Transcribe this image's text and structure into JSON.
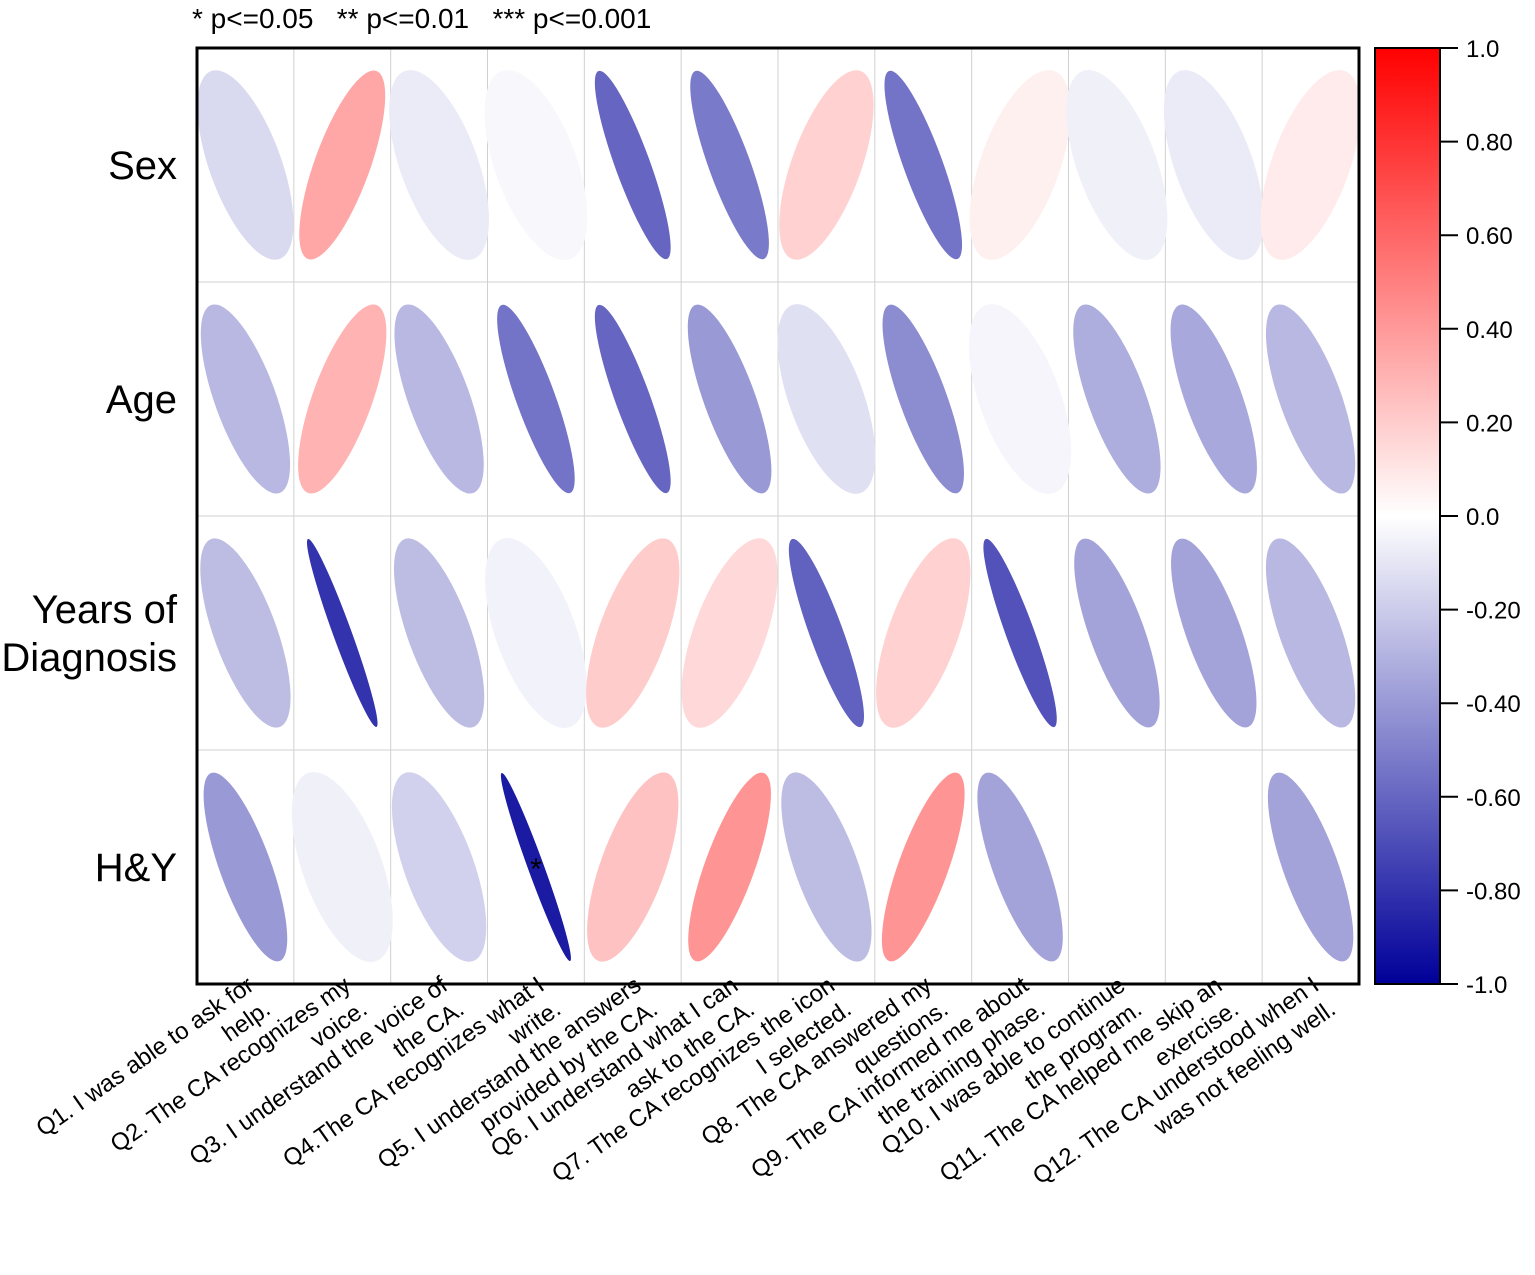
{
  "chart_data": {
    "type": "heatmap",
    "subtype": "correlation-ellipse",
    "significance_legend": "* p<=0.05   ** p<=0.01   *** p<=0.001",
    "rows": [
      "Sex",
      "Age",
      "Years of\nDiagnosis",
      "H&Y"
    ],
    "columns": [
      "Q1. I was able to ask for\nhelp.",
      "Q2. The CA recognizes my\nvoice.",
      "Q3. I understand the voice of\nthe CA.",
      "Q4.The CA recognizes what I\nwrite.",
      "Q5. I understand the answers\nprovided by the CA.",
      "Q6. I understand what I can\nask to the CA.",
      "Q7. The CA recognizes the icon\nI selected.",
      "Q8. The CA answered my\nquestions.",
      "Q9. The CA informed me about\nthe training phase.",
      "Q10. I was able to continue\nthe program.",
      "Q11. The CA helped me skip an\nexercise.",
      "Q12. The CA understood when I\nwas not feeling well."
    ],
    "values": [
      [
        -0.15,
        0.35,
        -0.08,
        -0.03,
        -0.6,
        -0.52,
        0.18,
        -0.55,
        0.06,
        -0.06,
        -0.08,
        0.08
      ],
      [
        -0.28,
        0.3,
        -0.28,
        -0.55,
        -0.6,
        -0.4,
        -0.12,
        -0.45,
        -0.04,
        -0.32,
        -0.34,
        -0.28
      ],
      [
        -0.26,
        -0.8,
        -0.26,
        -0.05,
        0.2,
        0.15,
        -0.62,
        0.18,
        -0.68,
        -0.36,
        -0.36,
        -0.28
      ],
      [
        -0.4,
        -0.06,
        -0.18,
        -0.9,
        0.24,
        0.42,
        -0.26,
        0.42,
        -0.36,
        null,
        null,
        -0.36
      ]
    ],
    "significance": [
      [
        "",
        "",
        "",
        "",
        "",
        "",
        "",
        "",
        "",
        "",
        "",
        ""
      ],
      [
        "",
        "",
        "",
        "",
        "",
        "",
        "",
        "",
        "",
        "",
        "",
        ""
      ],
      [
        "",
        "",
        "",
        "",
        "",
        "",
        "",
        "",
        "",
        "",
        "",
        ""
      ],
      [
        "",
        "",
        "",
        "*",
        "",
        "",
        "",
        "",
        "",
        "",
        "",
        ""
      ]
    ],
    "colorbar": {
      "min": -1.0,
      "max": 1.0,
      "ticks": [
        "1.0",
        "0.80",
        "0.60",
        "0.40",
        "0.20",
        "0.0",
        "-0.20",
        "-0.40",
        "-0.60",
        "-0.80",
        "-1.0"
      ],
      "colors": {
        "negative": "#000099",
        "zero": "#ffffff",
        "positive": "#ff0000"
      }
    }
  }
}
